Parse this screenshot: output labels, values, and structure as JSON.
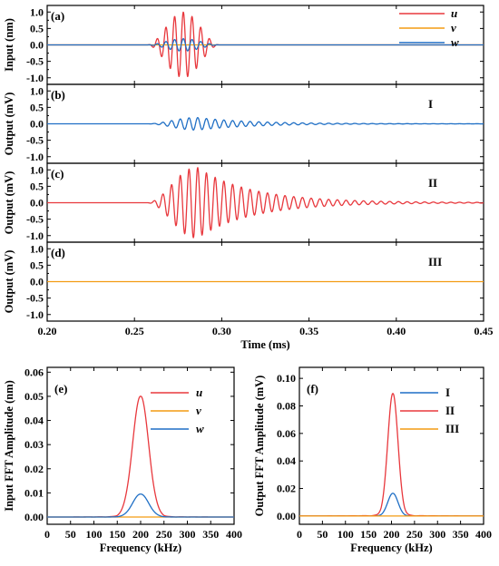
{
  "colors": {
    "red": "#e8383d",
    "orange": "#f39c12",
    "blue": "#1f6fc5"
  },
  "chart_data": [
    {
      "panel": "(a)",
      "type": "line",
      "ylabel": "Input (nm)",
      "xlim": [
        0.2,
        0.45
      ],
      "ylim": [
        -1.2,
        1.2
      ],
      "yticks": [
        "1.0",
        "0.5",
        "0.0",
        "-0.5",
        "-1.0"
      ],
      "series": [
        {
          "name": "u",
          "color": "red",
          "envelope_center": 0.278,
          "envelope_halfwidth": 0.021,
          "amplitude": 1.0,
          "freq_khz": 200
        },
        {
          "name": "v",
          "color": "orange",
          "amplitude": 0.0
        },
        {
          "name": "w",
          "color": "blue",
          "envelope_center": 0.278,
          "envelope_halfwidth": 0.021,
          "amplitude": 0.19,
          "freq_khz": 200
        }
      ],
      "legend": "top-right"
    },
    {
      "panel": "(b)",
      "type": "line",
      "annotation": "I",
      "ylabel": "Output (mV)",
      "xlim": [
        0.2,
        0.45
      ],
      "ylim": [
        -1.2,
        1.2
      ],
      "yticks": [
        "1.0",
        "0.5",
        "0.0",
        "-0.5",
        "-1.0"
      ],
      "series": [
        {
          "color": "blue",
          "envelope_center": 0.285,
          "amplitude": 0.19,
          "freq_khz": 200,
          "tail_decay_ms": 0.03
        }
      ]
    },
    {
      "panel": "(c)",
      "type": "line",
      "annotation": "II",
      "ylabel": "Output (mV)",
      "xlim": [
        0.2,
        0.45
      ],
      "ylim": [
        -1.2,
        1.2
      ],
      "yticks": [
        "1.0",
        "0.5",
        "0.0",
        "-0.5",
        "-1.0"
      ],
      "series": [
        {
          "color": "red",
          "envelope_center": 0.285,
          "amplitude": 1.07,
          "freq_khz": 200,
          "tail_decay_ms": 0.03
        }
      ]
    },
    {
      "panel": "(d)",
      "type": "line",
      "annotation": "III",
      "ylabel": "Output (mV)",
      "xlim": [
        0.2,
        0.45
      ],
      "ylim": [
        -1.2,
        1.2
      ],
      "yticks": [
        "1.0",
        "0.5",
        "0.0",
        "-0.5",
        "-1.0"
      ],
      "xticks": [
        "0.20",
        "0.25",
        "0.30",
        "0.35",
        "0.40",
        "0.45"
      ],
      "xlabel": "Time (ms)",
      "series": [
        {
          "color": "orange",
          "amplitude": 0.0
        }
      ]
    },
    {
      "panel": "(e)",
      "type": "line",
      "ylabel": "Input FFT Amplitude (nm)",
      "xlabel": "Frequency (kHz)",
      "xlim": [
        0,
        400
      ],
      "ylim": [
        -0.003,
        0.062
      ],
      "xticks": [
        "0",
        "50",
        "100",
        "150",
        "200",
        "250",
        "300",
        "350",
        "400"
      ],
      "yticks": [
        "0.06",
        "0.05",
        "0.04",
        "0.03",
        "0.02",
        "0.01",
        "0.00"
      ],
      "series": [
        {
          "name": "u",
          "color": "red",
          "peak_x": 200,
          "peak_y": 0.05,
          "sigma_khz": 17
        },
        {
          "name": "v",
          "color": "orange",
          "peak_y": 0.0
        },
        {
          "name": "w",
          "color": "blue",
          "peak_x": 200,
          "peak_y": 0.0095,
          "sigma_khz": 17
        }
      ],
      "legend": "top-right"
    },
    {
      "panel": "(f)",
      "type": "line",
      "ylabel": "Output FFT Amplitude (mV)",
      "xlabel": "Frequency (kHz)",
      "xlim": [
        0,
        400
      ],
      "ylim": [
        -0.006,
        0.108
      ],
      "xticks": [
        "0",
        "50",
        "100",
        "150",
        "200",
        "250",
        "300",
        "350",
        "400"
      ],
      "yticks": [
        "0.10",
        "0.08",
        "0.06",
        "0.04",
        "0.02",
        "0.00"
      ],
      "series": [
        {
          "name": "I",
          "color": "blue",
          "peak_x": 203,
          "peak_y": 0.0165,
          "sigma_khz": 11
        },
        {
          "name": "II",
          "color": "red",
          "peak_x": 203,
          "peak_y": 0.089,
          "sigma_khz": 11
        },
        {
          "name": "III",
          "color": "orange",
          "peak_y": 0.0
        }
      ],
      "legend": "top-right"
    }
  ]
}
